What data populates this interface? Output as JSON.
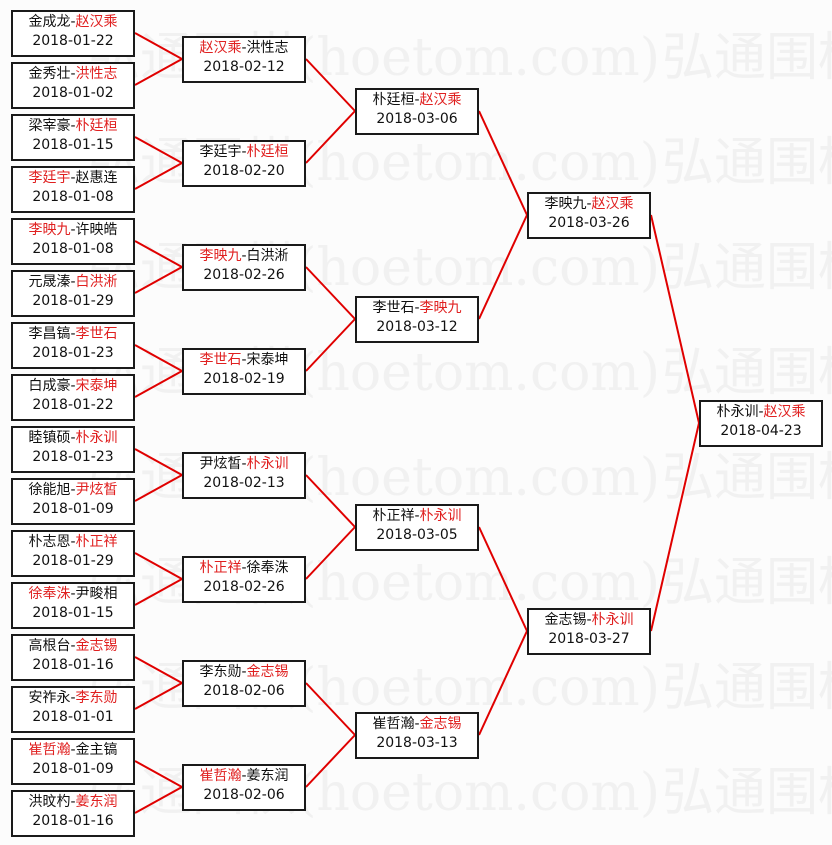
{
  "watermark": "弘通围棋(hoetom.com)",
  "watermark_tail": "弘通围棋",
  "colors": {
    "winner": "#e02020",
    "connector": "#e00000",
    "text": "#111111",
    "border": "#1a1a1a"
  },
  "rounds": [
    [
      {
        "a": "金成龙",
        "b": "赵汉乘",
        "winner": 1,
        "date": "2018-01-22"
      },
      {
        "a": "金秀壮",
        "b": "洪性志",
        "winner": 1,
        "date": "2018-01-02"
      },
      {
        "a": "梁宰豪",
        "b": "朴廷桓",
        "winner": 1,
        "date": "2018-01-15"
      },
      {
        "a": "李廷宇",
        "b": "赵惠连",
        "winner": 0,
        "date": "2018-01-08"
      },
      {
        "a": "李映九",
        "b": "许映皓",
        "winner": 0,
        "date": "2018-01-08"
      },
      {
        "a": "元晟溱",
        "b": "白洪淅",
        "winner": 1,
        "date": "2018-01-29"
      },
      {
        "a": "李昌镐",
        "b": "李世石",
        "winner": 1,
        "date": "2018-01-23"
      },
      {
        "a": "白成豪",
        "b": "宋泰坤",
        "winner": 1,
        "date": "2018-01-22"
      },
      {
        "a": "睦镇硕",
        "b": "朴永训",
        "winner": 1,
        "date": "2018-01-23"
      },
      {
        "a": "徐能旭",
        "b": "尹炫皙",
        "winner": 1,
        "date": "2018-01-09"
      },
      {
        "a": "朴志恩",
        "b": "朴正祥",
        "winner": 1,
        "date": "2018-01-29"
      },
      {
        "a": "徐奉洙",
        "b": "尹畯相",
        "winner": 0,
        "date": "2018-01-15"
      },
      {
        "a": "高根台",
        "b": "金志锡",
        "winner": 1,
        "date": "2018-01-16"
      },
      {
        "a": "安祚永",
        "b": "李东勋",
        "winner": 1,
        "date": "2018-01-01"
      },
      {
        "a": "崔哲瀚",
        "b": "金主镐",
        "winner": 0,
        "date": "2018-01-09"
      },
      {
        "a": "洪旼杓",
        "b": "姜东润",
        "winner": 1,
        "date": "2018-01-16"
      }
    ],
    [
      {
        "a": "赵汉乘",
        "b": "洪性志",
        "winner": 0,
        "date": "2018-02-12"
      },
      {
        "a": "李廷宇",
        "b": "朴廷桓",
        "winner": 1,
        "date": "2018-02-20"
      },
      {
        "a": "李映九",
        "b": "白洪淅",
        "winner": 0,
        "date": "2018-02-26"
      },
      {
        "a": "李世石",
        "b": "宋泰坤",
        "winner": 0,
        "date": "2018-02-19"
      },
      {
        "a": "尹炫皙",
        "b": "朴永训",
        "winner": 1,
        "date": "2018-02-13"
      },
      {
        "a": "朴正祥",
        "b": "徐奉洙",
        "winner": 0,
        "date": "2018-02-26"
      },
      {
        "a": "李东勋",
        "b": "金志锡",
        "winner": 1,
        "date": "2018-02-06"
      },
      {
        "a": "崔哲瀚",
        "b": "姜东润",
        "winner": 0,
        "date": "2018-02-06"
      }
    ],
    [
      {
        "a": "朴廷桓",
        "b": "赵汉乘",
        "winner": 1,
        "date": "2018-03-06"
      },
      {
        "a": "李世石",
        "b": "李映九",
        "winner": 1,
        "date": "2018-03-12"
      },
      {
        "a": "朴正祥",
        "b": "朴永训",
        "winner": 1,
        "date": "2018-03-05"
      },
      {
        "a": "崔哲瀚",
        "b": "金志锡",
        "winner": 1,
        "date": "2018-03-13"
      }
    ],
    [
      {
        "a": "李映九",
        "b": "赵汉乘",
        "winner": 1,
        "date": "2018-03-26"
      },
      {
        "a": "金志锡",
        "b": "朴永训",
        "winner": 1,
        "date": "2018-03-27"
      }
    ],
    [
      {
        "a": "朴永训",
        "b": "赵汉乘",
        "winner": 1,
        "date": "2018-04-23"
      }
    ]
  ]
}
